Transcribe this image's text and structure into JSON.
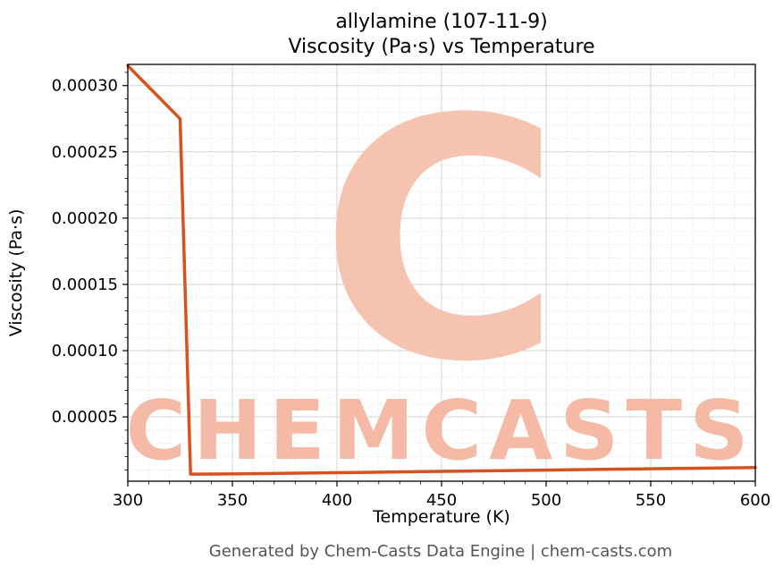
{
  "footer": {
    "text": "Generated by Chem-Casts Data Engine | chem-casts.com",
    "color": "#545454"
  },
  "watermark": {
    "letter": "C",
    "word": "CHEMCASTS",
    "letter_color": "#f6c3b0",
    "word_color": "#f4baa6"
  },
  "chart_data": {
    "type": "line",
    "title": "allylamine (107-11-9)\nViscosity (Pa·s) vs Temperature",
    "title_lines": [
      "allylamine (107-11-9)",
      "Viscosity (Pa·s) vs Temperature"
    ],
    "xlabel": "Temperature (K)",
    "ylabel": "Viscosity (Pa·s)",
    "xlim": [
      300,
      600
    ],
    "ylim": [
      1.5e-06,
      0.000316
    ],
    "x_ticks": [
      300,
      350,
      400,
      450,
      500,
      550,
      600
    ],
    "x_tick_labels": [
      "300",
      "350",
      "400",
      "450",
      "500",
      "550",
      "600"
    ],
    "y_ticks": [
      5e-05,
      0.0001,
      0.00015,
      0.0002,
      0.00025,
      0.0003
    ],
    "y_tick_labels": [
      "0.00005",
      "0.00010",
      "0.00015",
      "0.00020",
      "0.00025",
      "0.00030"
    ],
    "x_minor_step": 10,
    "y_minor_step": 1e-05,
    "grid": true,
    "grid_major_color": "#d3d3d3",
    "grid_minor_color": "#e3e3e3",
    "line_color": "#d8521f",
    "line_width": 3.5,
    "legend": false,
    "series": [
      {
        "name": "viscosity",
        "points": [
          [
            300,
            0.000315
          ],
          [
            325,
            0.000275
          ],
          [
            330,
            6.8e-06
          ],
          [
            350,
            7e-06
          ],
          [
            400,
            7.9e-06
          ],
          [
            450,
            8.9e-06
          ],
          [
            500,
            9.9e-06
          ],
          [
            550,
            1.09e-05
          ],
          [
            600,
            1.18e-05
          ]
        ]
      }
    ]
  }
}
